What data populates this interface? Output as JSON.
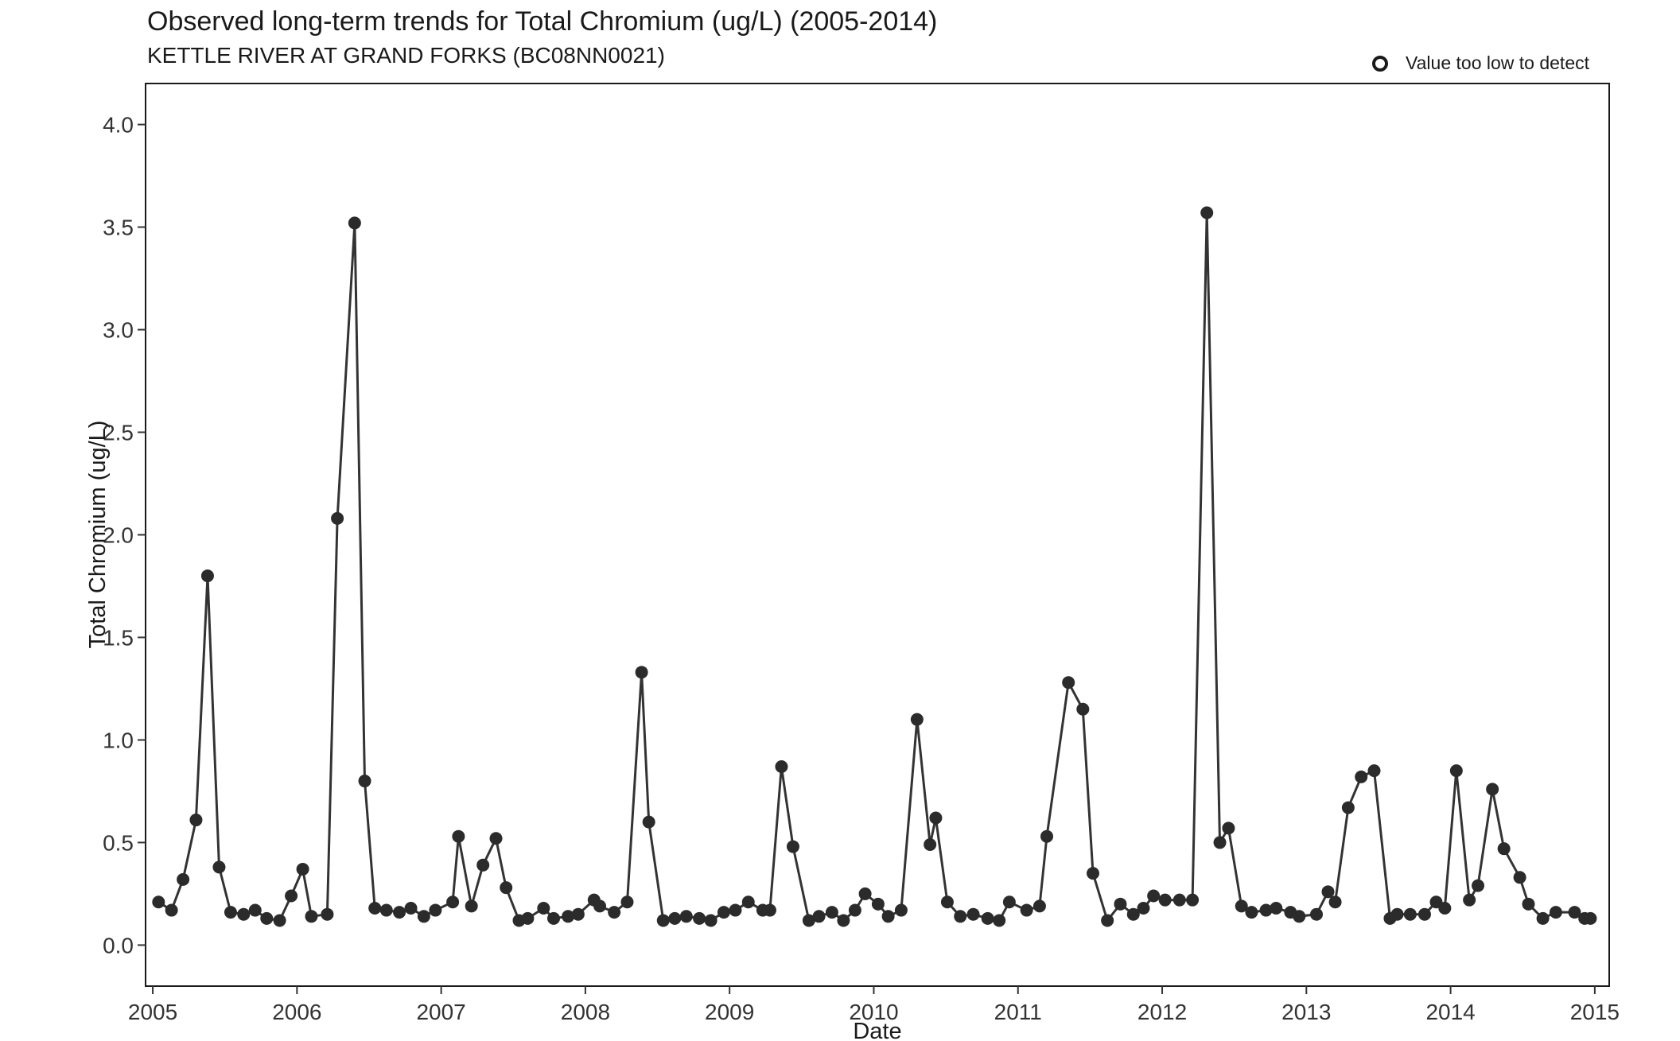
{
  "header": {
    "title": "Observed long-term trends for Total Chromium (ug/L) (2005-2014)",
    "subtitle": "KETTLE RIVER AT GRAND FORKS (BC08NN0021)"
  },
  "legend": {
    "label": "Value too low to detect",
    "marker": "open-circle"
  },
  "colors": {
    "line": "#333333",
    "point": "#2b2b2b",
    "panel_border": "#1a1a1a"
  },
  "chart_data": {
    "type": "line",
    "title": "Observed long-term trends for Total Chromium (ug/L) (2005-2014)",
    "subtitle": "KETTLE RIVER AT GRAND FORKS (BC08NN0021)",
    "xlabel": "Date",
    "ylabel": "Total Chromium (ug/L)",
    "xlim": [
      2004.95,
      2015.1
    ],
    "ylim": [
      -0.2,
      4.2
    ],
    "x_ticks": [
      "2005",
      "2006",
      "2007",
      "2008",
      "2009",
      "2010",
      "2011",
      "2012",
      "2013",
      "2014",
      "2015"
    ],
    "x_tick_values": [
      2005,
      2006,
      2007,
      2008,
      2009,
      2010,
      2011,
      2012,
      2013,
      2014,
      2015
    ],
    "y_ticks": [
      "0.0",
      "0.5",
      "1.0",
      "1.5",
      "2.0",
      "2.5",
      "3.0",
      "3.5",
      "4.0"
    ],
    "y_tick_values": [
      0,
      0.5,
      1,
      1.5,
      2,
      2.5,
      3,
      3.5,
      4
    ],
    "grid": false,
    "legend_position": "top-right",
    "series": [
      {
        "x": [
          2005.04,
          2005.13,
          2005.21,
          2005.3,
          2005.38,
          2005.46,
          2005.54,
          2005.63,
          2005.71,
          2005.79,
          2005.88,
          2005.96,
          2006.04,
          2006.1,
          2006.21,
          2006.28,
          2006.4,
          2006.47,
          2006.54,
          2006.62,
          2006.71,
          2006.79,
          2006.88,
          2006.96,
          2007.08,
          2007.12,
          2007.21,
          2007.29,
          2007.38,
          2007.45,
          2007.54,
          2007.6,
          2007.71,
          2007.78,
          2007.88,
          2007.95,
          2008.06,
          2008.1,
          2008.2,
          2008.29,
          2008.39,
          2008.44,
          2008.54,
          2008.62,
          2008.7,
          2008.79,
          2008.87,
          2008.96,
          2009.04,
          2009.13,
          2009.23,
          2009.28,
          2009.36,
          2009.44,
          2009.55,
          2009.62,
          2009.71,
          2009.79,
          2009.87,
          2009.94,
          2010.03,
          2010.1,
          2010.19,
          2010.3,
          2010.39,
          2010.43,
          2010.51,
          2010.6,
          2010.69,
          2010.79,
          2010.87,
          2010.94,
          2011.06,
          2011.15,
          2011.2,
          2011.35,
          2011.45,
          2011.52,
          2011.62,
          2011.71,
          2011.8,
          2011.87,
          2011.94,
          2012.02,
          2012.12,
          2012.21,
          2012.31,
          2012.4,
          2012.46,
          2012.55,
          2012.62,
          2012.72,
          2012.79,
          2012.89,
          2012.95,
          2013.07,
          2013.15,
          2013.2,
          2013.29,
          2013.38,
          2013.47,
          2013.58,
          2013.63,
          2013.72,
          2013.82,
          2013.9,
          2013.96,
          2014.04,
          2014.13,
          2014.19,
          2014.29,
          2014.37,
          2014.48,
          2014.54,
          2014.64,
          2014.73,
          2014.86,
          2014.93,
          2014.97
        ],
        "y": [
          0.21,
          0.17,
          0.32,
          0.61,
          1.8,
          0.38,
          0.16,
          0.15,
          0.17,
          0.13,
          0.12,
          0.24,
          0.37,
          0.14,
          0.15,
          2.08,
          3.52,
          0.8,
          0.18,
          0.17,
          0.16,
          0.18,
          0.14,
          0.17,
          0.21,
          0.53,
          0.19,
          0.39,
          0.52,
          0.28,
          0.12,
          0.13,
          0.18,
          0.13,
          0.14,
          0.15,
          0.22,
          0.19,
          0.16,
          0.21,
          1.33,
          0.6,
          0.12,
          0.13,
          0.14,
          0.13,
          0.12,
          0.16,
          0.17,
          0.21,
          0.17,
          0.17,
          0.87,
          0.48,
          0.12,
          0.14,
          0.16,
          0.12,
          0.17,
          0.25,
          0.2,
          0.14,
          0.17,
          1.1,
          0.49,
          0.62,
          0.21,
          0.14,
          0.15,
          0.13,
          0.12,
          0.21,
          0.17,
          0.19,
          0.53,
          1.28,
          1.15,
          0.35,
          0.12,
          0.2,
          0.15,
          0.18,
          0.24,
          0.22,
          0.22,
          0.22,
          3.57,
          0.5,
          0.57,
          0.19,
          0.16,
          0.17,
          0.18,
          0.16,
          0.14,
          0.15,
          0.26,
          0.21,
          0.67,
          0.82,
          0.85,
          0.13,
          0.15,
          0.15,
          0.15,
          0.21,
          0.18,
          0.85,
          0.22,
          0.29,
          0.76,
          0.47,
          0.33,
          0.2,
          0.13,
          0.16,
          0.16,
          0.13,
          0.13
        ]
      }
    ]
  }
}
